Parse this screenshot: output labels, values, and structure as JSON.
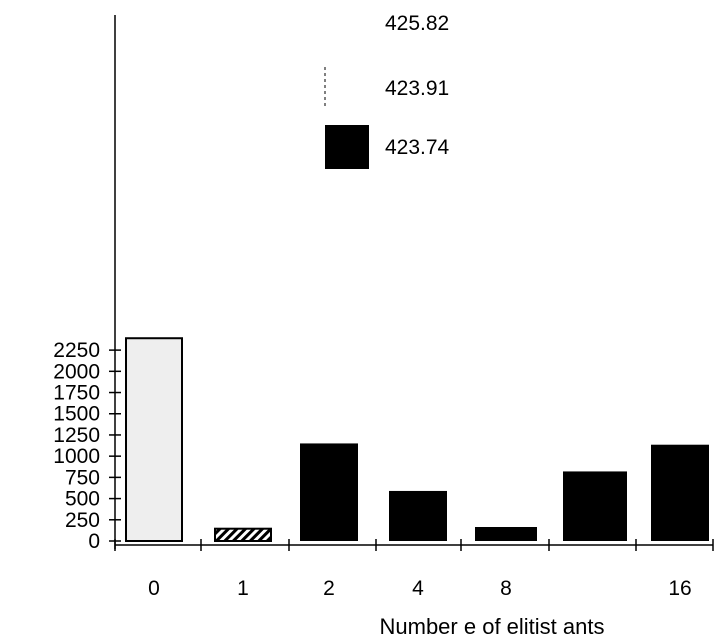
{
  "chart_data": {
    "type": "bar",
    "title": "",
    "xlabel": "Number e of elitist ants",
    "ylabel": "",
    "ylim": [
      0,
      2400
    ],
    "yticks": [
      0,
      250,
      500,
      750,
      1000,
      1250,
      1500,
      1750,
      2000,
      2250
    ],
    "categories": [
      "0",
      "1",
      "2",
      "4",
      "8",
      "",
      "16"
    ],
    "bars": [
      {
        "category": "0",
        "value": 2390,
        "pattern": "light-gray"
      },
      {
        "category": "1",
        "value": 145,
        "pattern": "hatched"
      },
      {
        "category": "2",
        "value": 1150,
        "pattern": "solid-black"
      },
      {
        "category": "4",
        "value": 590,
        "pattern": "solid-black"
      },
      {
        "category": "8",
        "value": 165,
        "pattern": "solid-black"
      },
      {
        "category": "",
        "value": 820,
        "pattern": "solid-black"
      },
      {
        "category": "16",
        "value": 1135,
        "pattern": "solid-black"
      }
    ],
    "legend": [
      {
        "label": "425.82",
        "pattern": "none"
      },
      {
        "label": "423.91",
        "pattern": "dashed-line"
      },
      {
        "label": "423.74",
        "pattern": "solid-black"
      }
    ],
    "legend_position": "top-right",
    "grid": false,
    "colors": {
      "solid": "#000000",
      "light": "#eeeeee",
      "outline": "#000000"
    }
  }
}
